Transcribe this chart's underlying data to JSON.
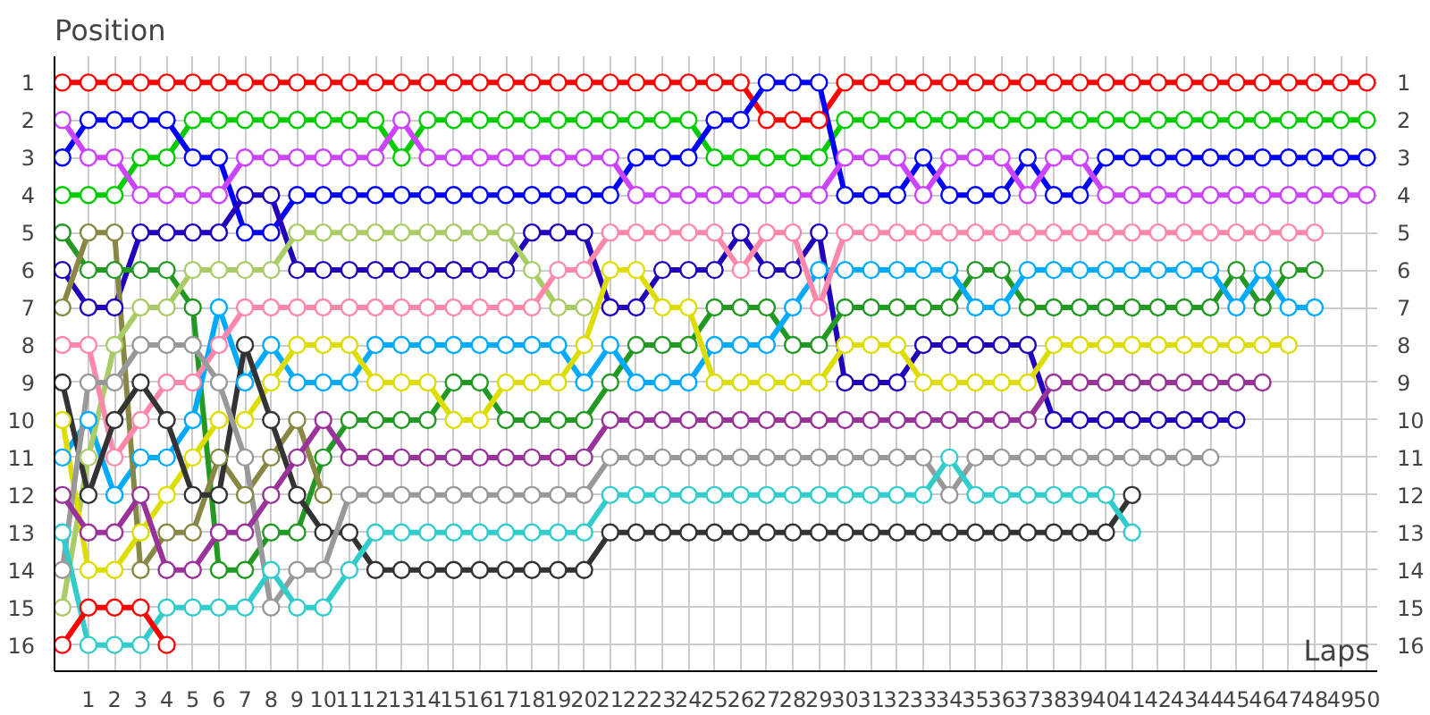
{
  "chart_data": {
    "type": "line",
    "xlabel": "Laps",
    "ylabel": "Position",
    "marker": "circle",
    "grid": true,
    "x": [
      0,
      1,
      2,
      3,
      4,
      5,
      6,
      7,
      8,
      9,
      10,
      11,
      12,
      13,
      14,
      15,
      16,
      17,
      18,
      19,
      20,
      21,
      22,
      23,
      24,
      25,
      26,
      27,
      28,
      29,
      30,
      31,
      32,
      33,
      34,
      35,
      36,
      37,
      38,
      39,
      40,
      41,
      42,
      43,
      44,
      45,
      46,
      47,
      48,
      49,
      50
    ],
    "xlim": [
      -0.3,
      50.4
    ],
    "xticks": [
      1,
      2,
      3,
      4,
      5,
      6,
      7,
      8,
      9,
      10,
      11,
      12,
      13,
      14,
      15,
      16,
      17,
      18,
      19,
      20,
      21,
      22,
      23,
      24,
      25,
      26,
      27,
      28,
      29,
      30,
      31,
      32,
      33,
      34,
      35,
      36,
      37,
      38,
      39,
      40,
      41,
      42,
      43,
      44,
      45,
      46,
      47,
      48,
      49,
      50
    ],
    "ylim": [
      16.7,
      0.3
    ],
    "yticks": [
      1,
      2,
      3,
      4,
      5,
      6,
      7,
      8,
      9,
      10,
      11,
      12,
      13,
      14,
      15,
      16
    ],
    "y2lim": [
      16.7,
      0.3
    ],
    "y2ticks": [
      1,
      2,
      3,
      4,
      5,
      6,
      7,
      8,
      9,
      10,
      11,
      12,
      13,
      14,
      15,
      16
    ],
    "series": [
      {
        "color": "#ff0000",
        "values": [
          1,
          1,
          1,
          1,
          1,
          1,
          1,
          1,
          1,
          1,
          1,
          1,
          1,
          1,
          1,
          1,
          1,
          1,
          1,
          1,
          1,
          1,
          1,
          1,
          1,
          1,
          1,
          2,
          2,
          2,
          1,
          1,
          1,
          1,
          1,
          1,
          1,
          1,
          1,
          1,
          1,
          1,
          1,
          1,
          1,
          1,
          1,
          1,
          1,
          1,
          1
        ]
      },
      {
        "color": "#00cc00",
        "values": [
          4,
          4,
          4,
          3,
          3,
          2,
          2,
          2,
          2,
          2,
          2,
          2,
          2,
          3,
          2,
          2,
          2,
          2,
          2,
          2,
          2,
          2,
          2,
          2,
          2,
          3,
          3,
          3,
          3,
          3,
          2,
          2,
          2,
          2,
          2,
          2,
          2,
          2,
          2,
          2,
          2,
          2,
          2,
          2,
          2,
          2,
          2,
          2,
          2,
          2,
          2
        ]
      },
      {
        "color": "#0000ff",
        "values": [
          3,
          2,
          2,
          2,
          2,
          3,
          3,
          5,
          5,
          4,
          4,
          4,
          4,
          4,
          4,
          4,
          4,
          4,
          4,
          4,
          4,
          4,
          3,
          3,
          3,
          2,
          2,
          1,
          1,
          1,
          4,
          4,
          4,
          3,
          4,
          4,
          4,
          3,
          4,
          4,
          3,
          3,
          3,
          3,
          3,
          3,
          3,
          3,
          3,
          3,
          3
        ]
      },
      {
        "color": "#cc44ff",
        "values": [
          2,
          3,
          3,
          4,
          4,
          4,
          4,
          3,
          3,
          3,
          3,
          3,
          3,
          2,
          3,
          3,
          3,
          3,
          3,
          3,
          3,
          3,
          4,
          4,
          4,
          4,
          4,
          4,
          4,
          4,
          3,
          3,
          3,
          4,
          3,
          3,
          3,
          4,
          3,
          3,
          4,
          4,
          4,
          4,
          4,
          4,
          4,
          4,
          4,
          4,
          4
        ]
      },
      {
        "color": "#2200bb",
        "values": [
          6,
          7,
          7,
          5,
          5,
          5,
          5,
          4,
          4,
          6,
          6,
          6,
          6,
          6,
          6,
          6,
          6,
          6,
          5,
          5,
          5,
          7,
          7,
          6,
          6,
          6,
          5,
          6,
          6,
          5,
          9,
          9,
          9,
          8,
          8,
          8,
          8,
          8,
          10,
          10,
          10,
          10,
          10,
          10,
          10,
          10,
          null,
          null,
          null,
          null,
          null
        ]
      },
      {
        "color": "#229922",
        "values": [
          5,
          6,
          6,
          6,
          6,
          7,
          14,
          14,
          13,
          13,
          11,
          10,
          10,
          10,
          10,
          9,
          9,
          10,
          10,
          10,
          10,
          9,
          8,
          8,
          8,
          7,
          7,
          7,
          8,
          8,
          7,
          7,
          7,
          7,
          7,
          6,
          6,
          7,
          7,
          7,
          7,
          7,
          7,
          7,
          7,
          6,
          7,
          6,
          6,
          null,
          null
        ]
      },
      {
        "color": "#00aaff",
        "values": [
          11,
          10,
          12,
          11,
          11,
          10,
          7,
          9,
          8,
          9,
          9,
          9,
          8,
          8,
          8,
          8,
          8,
          8,
          8,
          8,
          9,
          8,
          9,
          9,
          9,
          8,
          8,
          8,
          7,
          6,
          6,
          6,
          6,
          6,
          6,
          7,
          7,
          6,
          6,
          6,
          6,
          6,
          6,
          6,
          6,
          7,
          6,
          7,
          7,
          null,
          null
        ]
      },
      {
        "color": "#888844",
        "values": [
          7,
          5,
          5,
          14,
          13,
          13,
          11,
          12,
          11,
          10,
          12,
          null,
          null,
          null,
          null,
          null,
          null,
          null,
          null,
          null,
          null,
          null,
          null,
          null,
          null,
          null,
          null,
          null,
          null,
          null,
          null,
          null,
          null,
          null,
          null,
          null,
          null,
          null,
          null,
          null,
          null,
          null,
          null,
          null,
          null,
          null,
          null,
          null,
          null,
          null,
          null
        ]
      },
      {
        "color": "#aacc66",
        "values": [
          15,
          11,
          8,
          7,
          7,
          6,
          6,
          6,
          6,
          5,
          5,
          5,
          5,
          5,
          5,
          5,
          5,
          5,
          6,
          7,
          7,
          null,
          null,
          null,
          null,
          null,
          null,
          null,
          null,
          null,
          null,
          null,
          null,
          null,
          null,
          null,
          null,
          null,
          null,
          null,
          null,
          null,
          null,
          null,
          null,
          null,
          null,
          null,
          null,
          null,
          null
        ]
      },
      {
        "color": "#ff88aa",
        "values": [
          8,
          8,
          11,
          10,
          9,
          9,
          8,
          7,
          7,
          7,
          7,
          7,
          7,
          7,
          7,
          7,
          7,
          7,
          7,
          6,
          6,
          5,
          5,
          5,
          5,
          5,
          6,
          5,
          5,
          7,
          5,
          5,
          5,
          5,
          5,
          5,
          5,
          5,
          5,
          5,
          5,
          5,
          5,
          5,
          5,
          5,
          5,
          5,
          5,
          null,
          null
        ]
      },
      {
        "color": "#dddd00",
        "values": [
          10,
          14,
          14,
          13,
          12,
          11,
          10,
          10,
          9,
          8,
          8,
          8,
          9,
          9,
          9,
          10,
          10,
          9,
          9,
          9,
          8,
          6,
          6,
          7,
          7,
          9,
          9,
          9,
          9,
          9,
          8,
          8,
          8,
          9,
          9,
          9,
          9,
          9,
          8,
          8,
          8,
          8,
          8,
          8,
          8,
          8,
          8,
          8,
          null,
          null,
          null
        ]
      },
      {
        "color": "#333333",
        "values": [
          9,
          12,
          10,
          9,
          10,
          12,
          12,
          8,
          10,
          12,
          13,
          13,
          14,
          14,
          14,
          14,
          14,
          14,
          14,
          14,
          14,
          13,
          13,
          13,
          13,
          13,
          13,
          13,
          13,
          13,
          13,
          13,
          13,
          13,
          13,
          13,
          13,
          13,
          13,
          13,
          13,
          12,
          null,
          null,
          null,
          null,
          null,
          null,
          null,
          null,
          null
        ]
      },
      {
        "color": "#999999",
        "values": [
          14,
          9,
          9,
          8,
          8,
          8,
          9,
          11,
          15,
          14,
          14,
          12,
          12,
          12,
          12,
          12,
          12,
          12,
          12,
          12,
          12,
          11,
          11,
          11,
          11,
          11,
          11,
          11,
          11,
          11,
          11,
          11,
          11,
          11,
          12,
          11,
          11,
          11,
          11,
          11,
          11,
          11,
          11,
          11,
          11,
          null,
          null,
          null,
          null,
          null,
          null
        ]
      },
      {
        "color": "#993399",
        "values": [
          12,
          13,
          13,
          12,
          14,
          14,
          13,
          13,
          12,
          11,
          10,
          11,
          11,
          11,
          11,
          11,
          11,
          11,
          11,
          11,
          11,
          10,
          10,
          10,
          10,
          10,
          10,
          10,
          10,
          10,
          10,
          10,
          10,
          10,
          10,
          10,
          10,
          10,
          9,
          9,
          9,
          9,
          9,
          9,
          9,
          9,
          9,
          null,
          null,
          null,
          null
        ]
      },
      {
        "color": "#33cccc",
        "values": [
          13,
          16,
          16,
          16,
          15,
          15,
          15,
          15,
          14,
          15,
          15,
          14,
          13,
          13,
          13,
          13,
          13,
          13,
          13,
          13,
          13,
          12,
          12,
          12,
          12,
          12,
          12,
          12,
          12,
          12,
          12,
          12,
          12,
          12,
          11,
          12,
          12,
          12,
          12,
          12,
          12,
          13,
          null,
          null,
          null,
          null,
          null,
          null,
          null,
          null,
          null
        ]
      },
      {
        "color": "#ff0000",
        "values": [
          16,
          15,
          15,
          15,
          16,
          null,
          null,
          null,
          null,
          null,
          null,
          null,
          null,
          null,
          null,
          null,
          null,
          null,
          null,
          null,
          null,
          null,
          null,
          null,
          null,
          null,
          null,
          null,
          null,
          null,
          null,
          null,
          null,
          null,
          null,
          null,
          null,
          null,
          null,
          null,
          null,
          null,
          null,
          null,
          null,
          null,
          null,
          null,
          null,
          null,
          null
        ]
      }
    ]
  }
}
